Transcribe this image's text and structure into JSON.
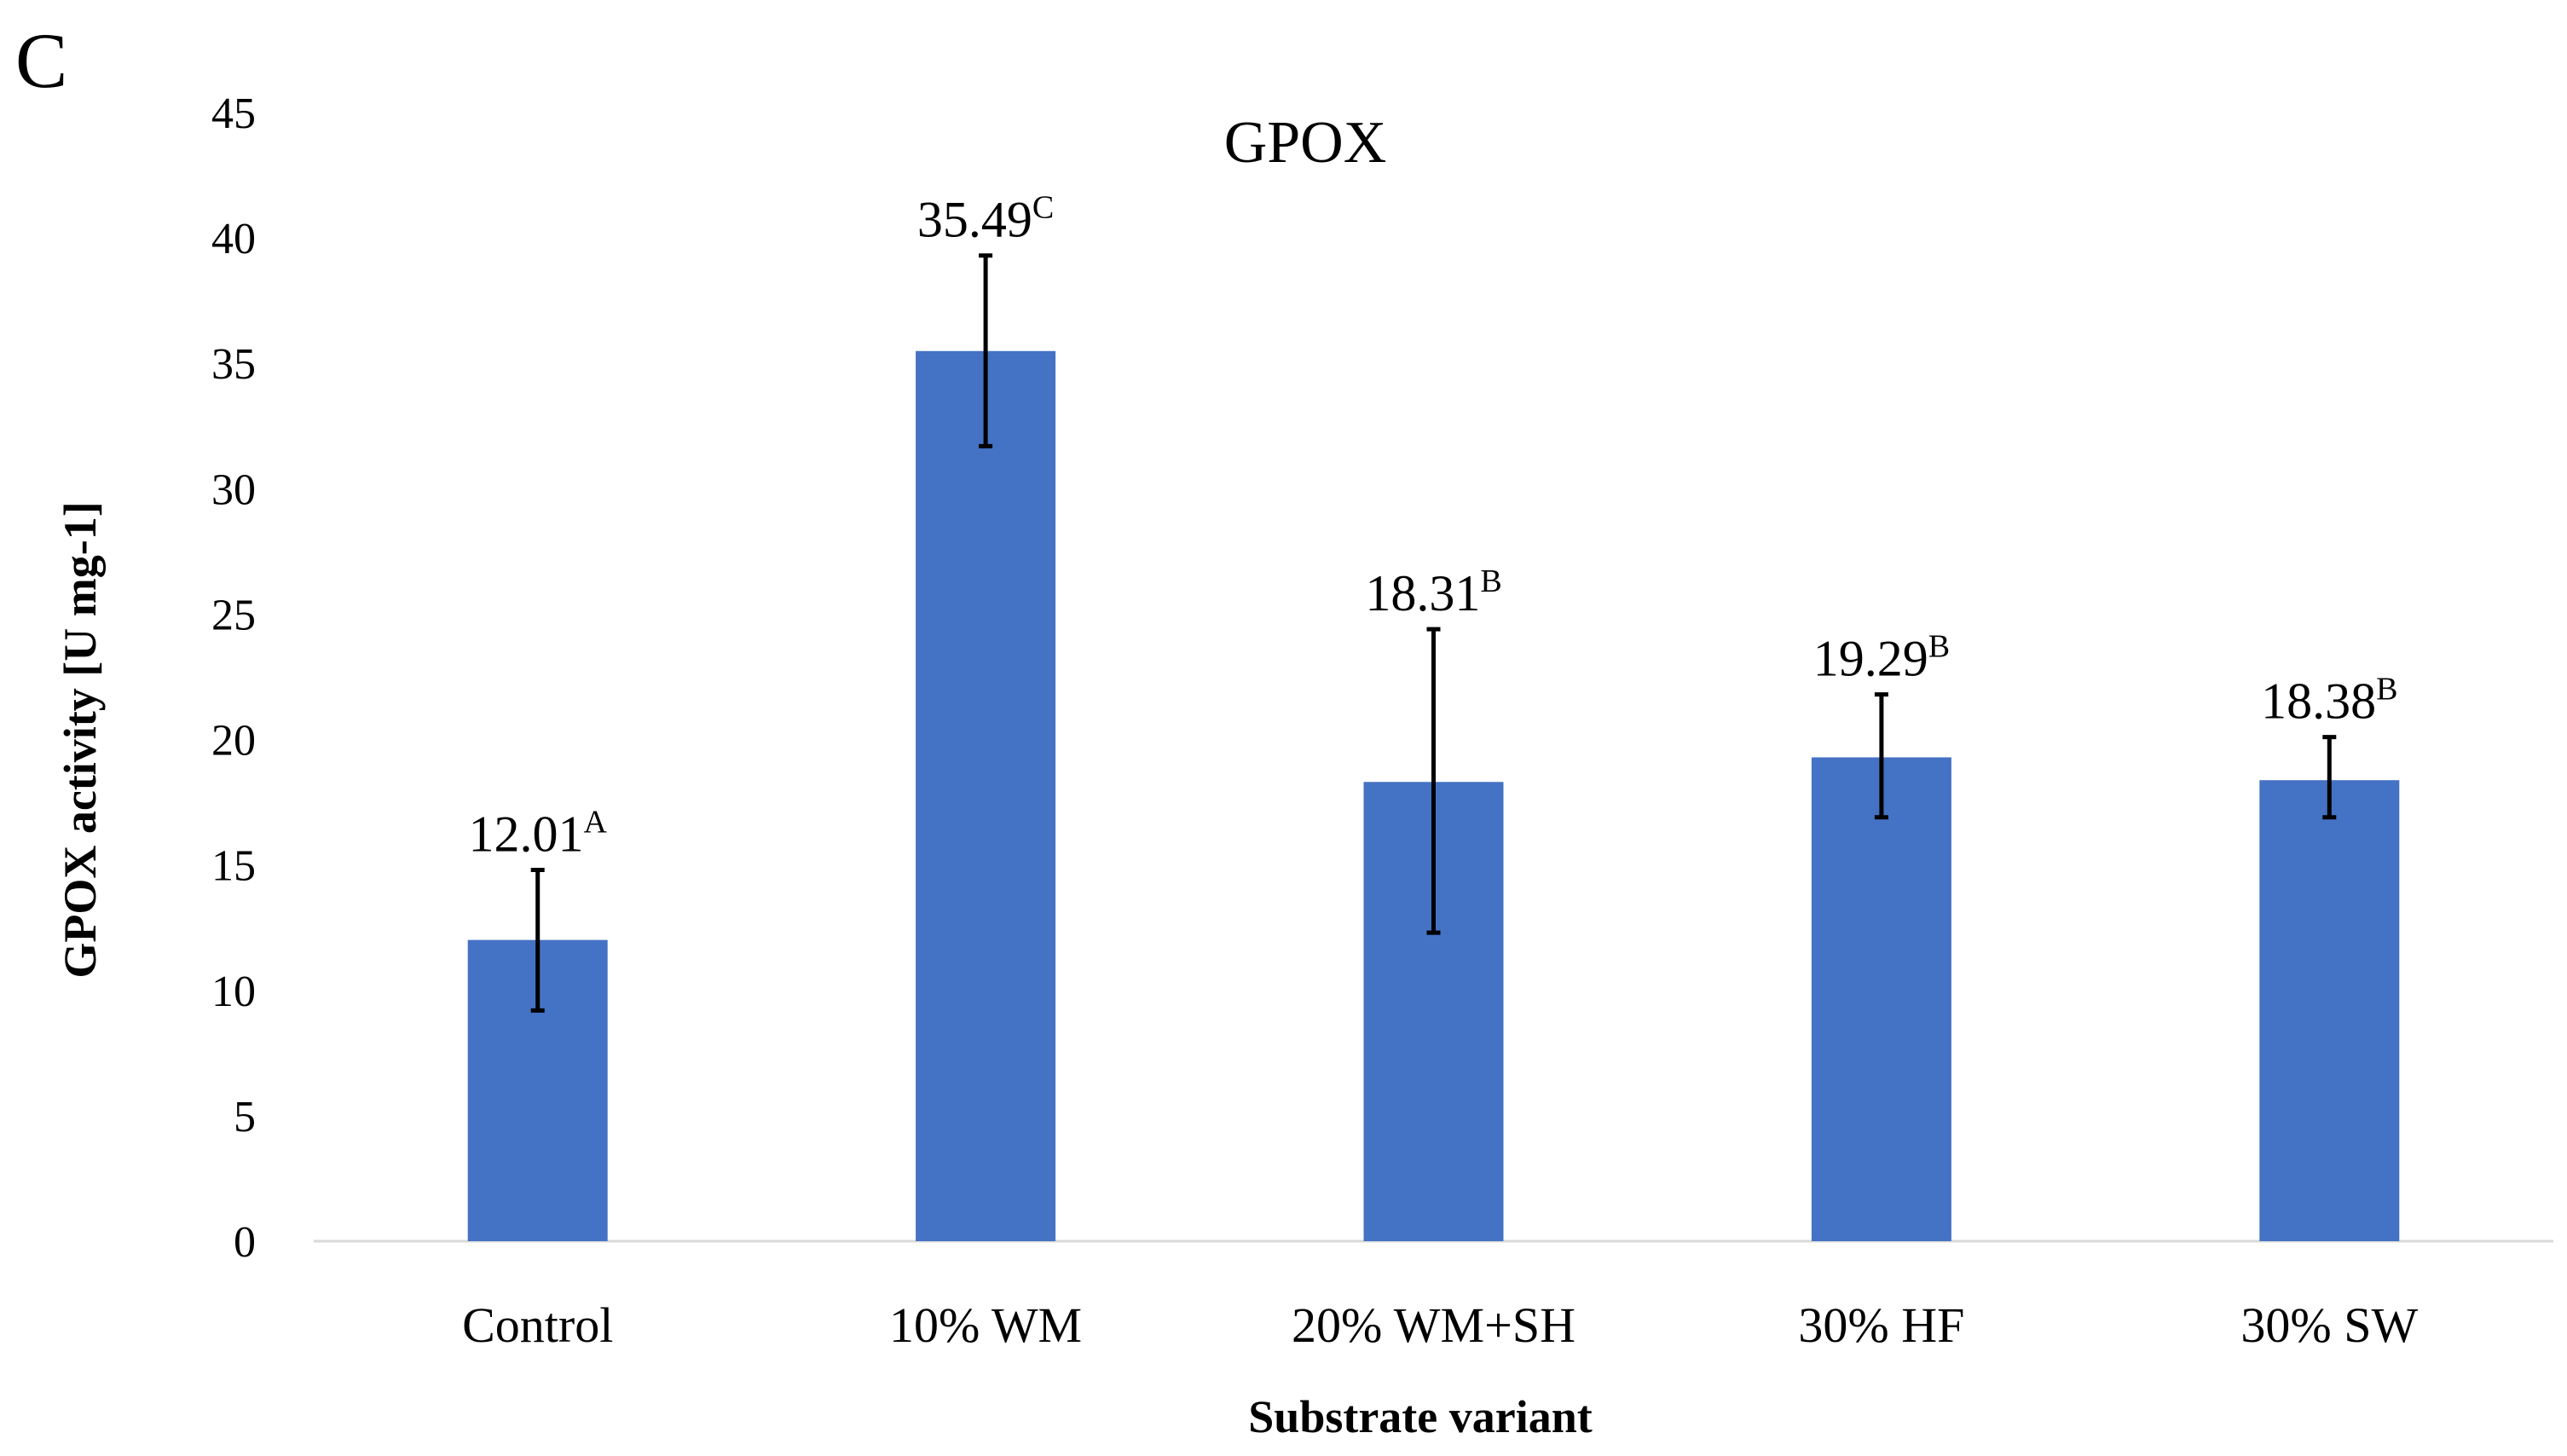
{
  "panel_label": "C",
  "chart_data": {
    "type": "bar",
    "title": "GPOX",
    "xlabel": "Substrate variant",
    "ylabel": "GPOX activity [U mg-1]",
    "ylim": [
      0,
      45
    ],
    "yticks": [
      0,
      5,
      10,
      15,
      20,
      25,
      30,
      35,
      40,
      45
    ],
    "grid": false,
    "categories": [
      "Control",
      "10% WM",
      "20% WM+SH",
      "30% HF",
      "30% SW"
    ],
    "values": [
      12.01,
      35.49,
      18.31,
      19.29,
      18.38
    ],
    "error_low": [
      9.2,
      31.7,
      12.3,
      16.9,
      16.9
    ],
    "error_high": [
      14.8,
      39.3,
      24.4,
      21.8,
      20.1
    ],
    "value_labels": [
      "12.01",
      "35.49",
      "18.31",
      "19.29",
      "18.38"
    ],
    "significance_letters": [
      "A",
      "C",
      "B",
      "B",
      "B"
    ],
    "bar_color": "#4472c4",
    "error_color": "#000000",
    "axis_color": "#d9d9d9",
    "text_color": "#000000"
  }
}
